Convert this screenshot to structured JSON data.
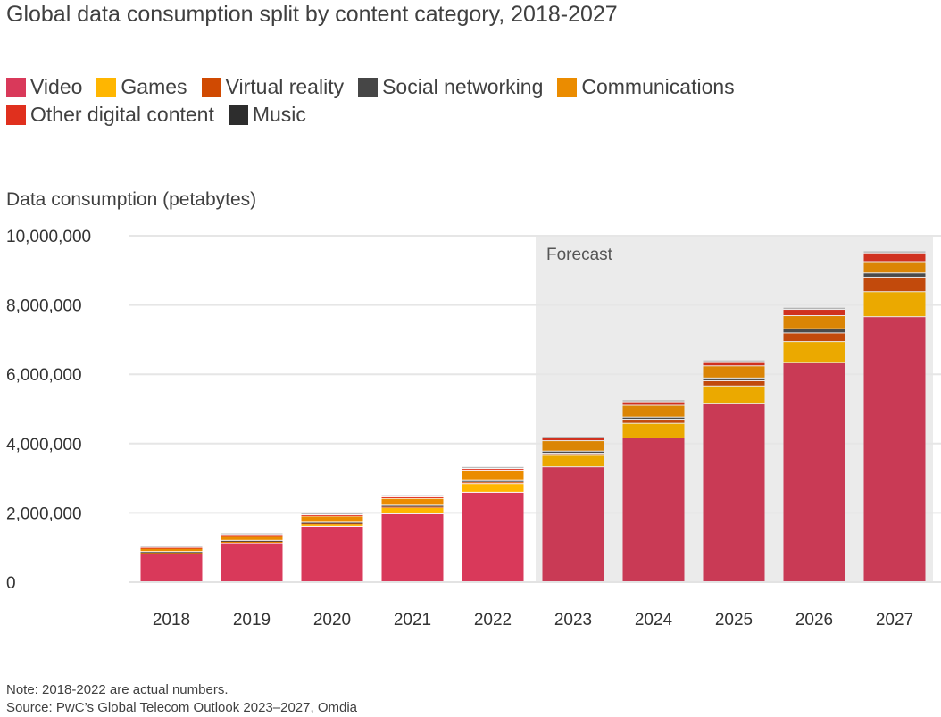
{
  "chart_data": {
    "type": "bar",
    "stacked": true,
    "title": "Global data consumption split by content category, 2018-2027",
    "ylabel": "Data consumption (petabytes)",
    "xlabel": "",
    "ylim": [
      0,
      10000000
    ],
    "yticks": [
      0,
      2000000,
      4000000,
      6000000,
      8000000,
      10000000
    ],
    "ytick_labels": [
      "0",
      "2,000,000",
      "4,000,000",
      "6,000,000",
      "8,000,000",
      "10,000,000"
    ],
    "grid": true,
    "legend_placement": "top-left",
    "categories": [
      "2018",
      "2019",
      "2020",
      "2021",
      "2022",
      "2023",
      "2024",
      "2025",
      "2026",
      "2027"
    ],
    "forecast": {
      "label": "Forecast",
      "from": "2023",
      "to": "2027"
    },
    "series": [
      {
        "name": "Video",
        "color": "#d9395a",
        "forecast_color": "#c93a55",
        "values": [
          820000,
          1120000,
          1600000,
          1960000,
          2580000,
          3320000,
          4150000,
          5150000,
          6330000,
          7650000
        ]
      },
      {
        "name": "Games",
        "color": "#ffb600",
        "forecast_color": "#eba900",
        "values": [
          30000,
          40000,
          70000,
          180000,
          250000,
          330000,
          420000,
          500000,
          600000,
          720000
        ]
      },
      {
        "name": "Virtual reality",
        "color": "#d04a02",
        "forecast_color": "#c24a0c",
        "values": [
          10000,
          15000,
          25000,
          35000,
          50000,
          60000,
          120000,
          150000,
          250000,
          420000
        ]
      },
      {
        "name": "Social networking",
        "color": "#464646",
        "forecast_color": "#4a4a4a",
        "values": [
          10000,
          15000,
          20000,
          30000,
          40000,
          60000,
          60000,
          80000,
          120000,
          120000
        ]
      },
      {
        "name": "Communications",
        "color": "#eb8c00",
        "forecast_color": "#db8505",
        "values": [
          100000,
          140000,
          180000,
          200000,
          300000,
          300000,
          340000,
          350000,
          380000,
          330000
        ]
      },
      {
        "name": "Other digital content",
        "color": "#e0301e",
        "forecast_color": "#d0311f",
        "values": [
          20000,
          25000,
          35000,
          45000,
          50000,
          80000,
          100000,
          120000,
          180000,
          250000
        ]
      },
      {
        "name": "Music",
        "color": "#2d2d2d",
        "forecast_color": "#b5b5b5",
        "values": [
          50000,
          50000,
          60000,
          60000,
          60000,
          50000,
          60000,
          50000,
          60000,
          60000
        ]
      }
    ]
  },
  "legend": {
    "row1": [
      "Video",
      "Games",
      "Virtual reality",
      "Social networking",
      "Communications"
    ],
    "row2": [
      "Other digital content",
      "Music"
    ],
    "colors": {
      "Video": "#d9395a",
      "Games": "#ffb600",
      "Virtual reality": "#d04a02",
      "Social networking": "#464646",
      "Communications": "#eb8c00",
      "Other digital content": "#e0301e",
      "Music": "#2d2d2d"
    }
  },
  "footer": {
    "note": "Note: 2018-2022 are actual numbers.",
    "source": "Source: PwC’s Global Telecom Outlook 2023–2027, Omdia"
  }
}
